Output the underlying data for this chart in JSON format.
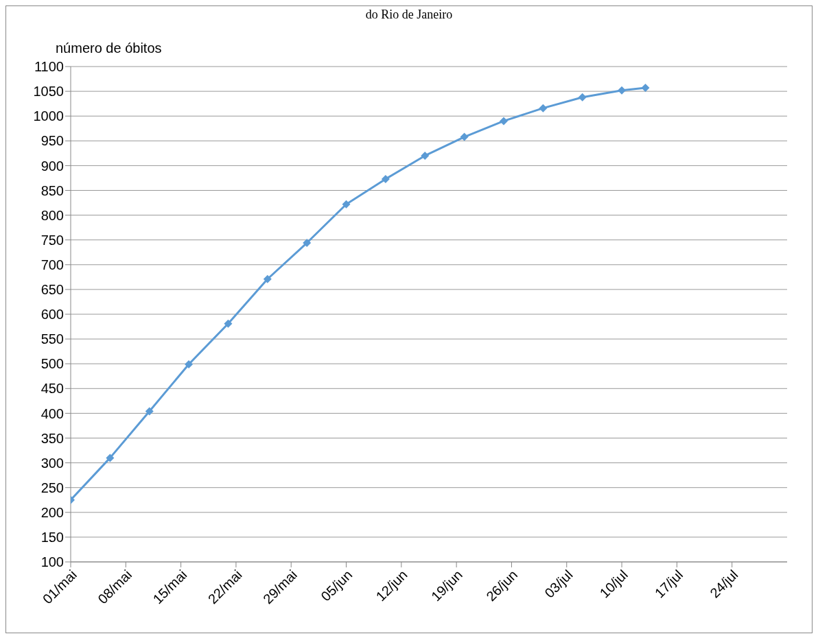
{
  "chart_data": {
    "type": "line",
    "title": "do Rio de Janeiro",
    "ylabel": "número de óbitos",
    "x": [
      "--05-01",
      "--05-06",
      "--05-11",
      "--05-16",
      "--05-21",
      "--05-26",
      "--05-31",
      "--06-05",
      "--06-10",
      "--06-15",
      "--06-20",
      "--06-25",
      "--06-30",
      "--07-05",
      "--07-10",
      "--07-13"
    ],
    "series": [
      {
        "color": "#5b9bd5",
        "values": [
          225,
          310,
          404,
          499,
          581,
          671,
          744,
          822,
          873,
          920,
          958,
          990,
          1016,
          1038,
          1052,
          1057
        ]
      }
    ],
    "xlim": [
      "--05-01",
      "--07-31"
    ],
    "xticks": [
      {
        "value": "--05-01",
        "label": "01/mai"
      },
      {
        "value": "--05-08",
        "label": "08/mai"
      },
      {
        "value": "--05-15",
        "label": "15/mai"
      },
      {
        "value": "--05-22",
        "label": "22/mai"
      },
      {
        "value": "--05-29",
        "label": "29/mai"
      },
      {
        "value": "--06-05",
        "label": "05/jun"
      },
      {
        "value": "--06-12",
        "label": "12/jun"
      },
      {
        "value": "--06-19",
        "label": "19/jun"
      },
      {
        "value": "--06-26",
        "label": "26/jun"
      },
      {
        "value": "--07-03",
        "label": "03/jul"
      },
      {
        "value": "--07-10",
        "label": "10/jul"
      },
      {
        "value": "--07-17",
        "label": "17/jul"
      },
      {
        "value": "--07-24",
        "label": "24/jul"
      }
    ],
    "ylim": [
      100,
      1100
    ],
    "yticks": [
      100,
      150,
      200,
      250,
      300,
      350,
      400,
      450,
      500,
      550,
      600,
      650,
      700,
      750,
      800,
      850,
      900,
      950,
      1000,
      1050,
      1100
    ],
    "grid": "y",
    "marker": "diamond",
    "line_style": "solid",
    "legend": false
  }
}
